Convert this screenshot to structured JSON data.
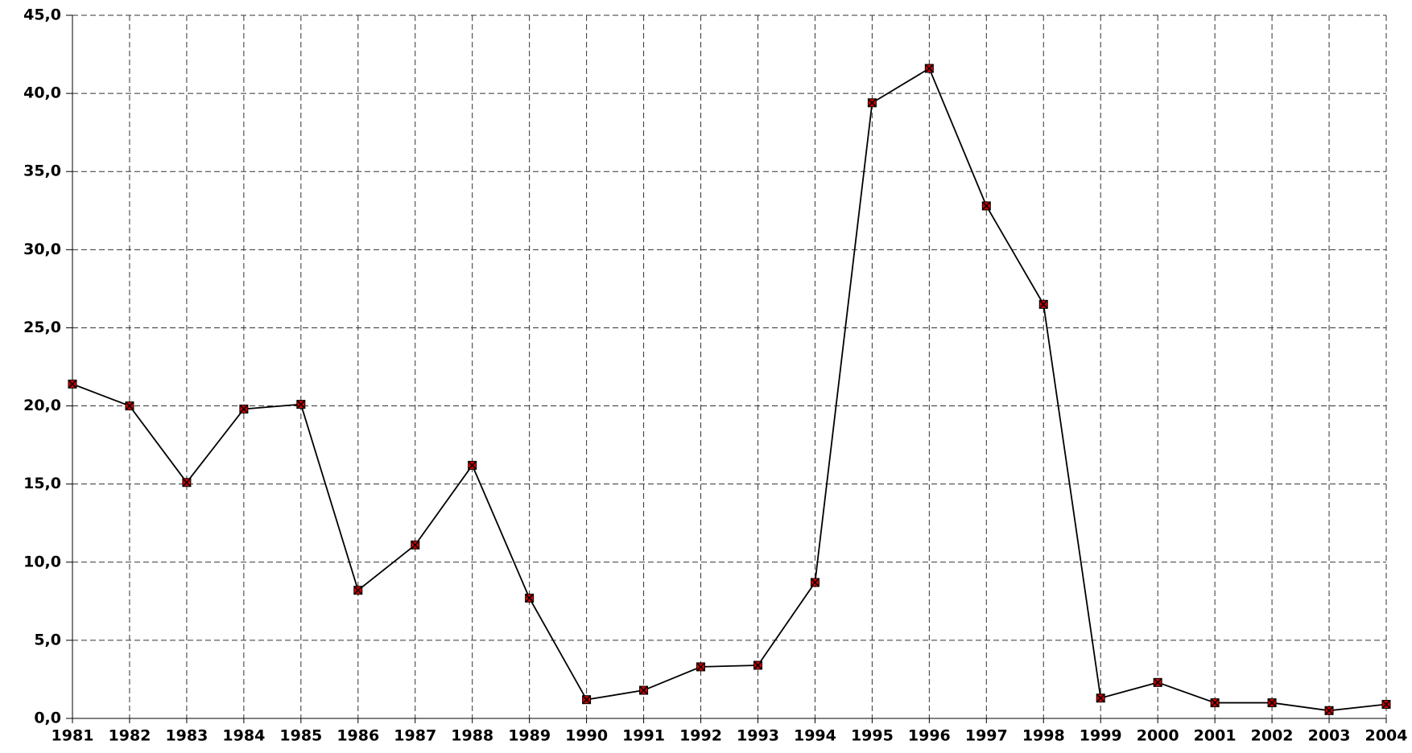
{
  "chart_data": {
    "type": "line",
    "categories": [
      "1981",
      "1982",
      "1983",
      "1984",
      "1985",
      "1986",
      "1987",
      "1988",
      "1989",
      "1990",
      "1991",
      "1992",
      "1993",
      "1994",
      "1995",
      "1996",
      "1997",
      "1998",
      "1999",
      "2000",
      "2001",
      "2002",
      "2003",
      "2004"
    ],
    "series": [
      {
        "color": "#000000",
        "marker_color": "#cc0000",
        "values": [
          21.4,
          20.0,
          15.1,
          19.8,
          20.1,
          8.2,
          11.1,
          16.2,
          7.7,
          1.2,
          1.8,
          3.3,
          3.4,
          8.7,
          39.4,
          41.6,
          32.8,
          26.5,
          1.3,
          2.3,
          1.0,
          1.0,
          0.5,
          0.9
        ]
      }
    ],
    "ylim": [
      0,
      45
    ],
    "yticks": [
      {
        "value": 0,
        "label": "0,0"
      },
      {
        "value": 5,
        "label": "5,0"
      },
      {
        "value": 10,
        "label": "10,0"
      },
      {
        "value": 15,
        "label": "15,0"
      },
      {
        "value": 20,
        "label": "20,0"
      },
      {
        "value": 25,
        "label": "25,0"
      },
      {
        "value": 30,
        "label": "30,0"
      },
      {
        "value": 35,
        "label": "35,0"
      },
      {
        "value": 40,
        "label": "40,0"
      },
      {
        "value": 45,
        "label": "45,0"
      }
    ],
    "grid": true
  }
}
